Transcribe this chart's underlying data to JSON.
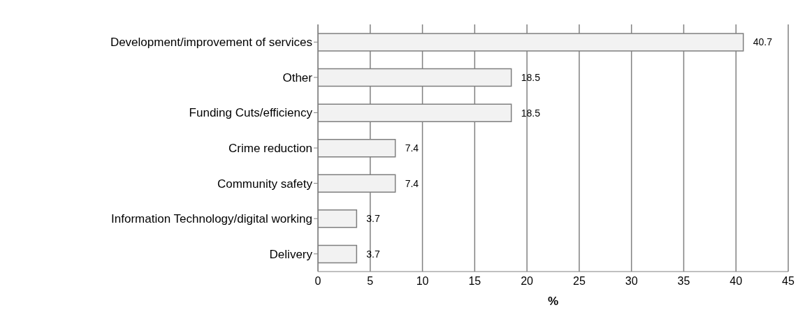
{
  "chart_data": {
    "type": "bar",
    "orientation": "horizontal",
    "xlabel": "%",
    "categories": [
      "Development/improvement of services",
      "Other",
      "Funding Cuts/efficiency",
      "Crime reduction",
      "Community safety",
      "Information Technology/digital working",
      "Delivery"
    ],
    "values": [
      40.7,
      18.5,
      18.5,
      7.4,
      7.4,
      3.7,
      3.7
    ],
    "color": "#f2f2f2",
    "xlim": [
      0,
      45
    ],
    "xticks": [
      0,
      5,
      10,
      15,
      20,
      25,
      30,
      35,
      40,
      45
    ],
    "grid": "x",
    "data_labels": true
  }
}
